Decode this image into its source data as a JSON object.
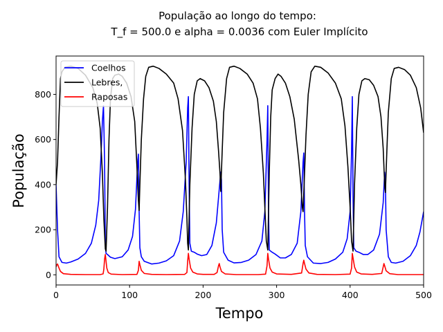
{
  "chart_data": {
    "type": "line",
    "title": "População ao longo do tempo:",
    "subtitle": "T_f = 500.0 e alpha = 0.0036 com Euler Implícito",
    "xlabel": "Tempo",
    "ylabel": "População",
    "xlim": [
      0,
      500
    ],
    "ylim": [
      -45,
      970
    ],
    "xticks": [
      0,
      100,
      200,
      300,
      400,
      500
    ],
    "yticks": [
      0,
      200,
      400,
      600,
      800
    ],
    "grid": false,
    "legend": "top-left",
    "series": [
      {
        "name": "Coelhos",
        "color": "#0000ff",
        "points": [
          [
            0,
            400
          ],
          [
            2,
            200
          ],
          [
            4,
            80
          ],
          [
            8,
            55
          ],
          [
            14,
            52
          ],
          [
            20,
            57
          ],
          [
            30,
            70
          ],
          [
            40,
            95
          ],
          [
            48,
            140
          ],
          [
            54,
            220
          ],
          [
            58,
            330
          ],
          [
            61,
            520
          ],
          [
            63,
            680
          ],
          [
            64.5,
            750
          ],
          [
            66,
            500
          ],
          [
            67,
            140
          ],
          [
            68,
            95
          ],
          [
            70,
            90
          ],
          [
            74,
            78
          ],
          [
            80,
            72
          ],
          [
            90,
            80
          ],
          [
            98,
            110
          ],
          [
            104,
            170
          ],
          [
            108,
            290
          ],
          [
            111,
            500
          ],
          [
            112,
            535
          ],
          [
            113,
            280
          ],
          [
            114,
            120
          ],
          [
            116,
            80
          ],
          [
            120,
            60
          ],
          [
            130,
            48
          ],
          [
            140,
            52
          ],
          [
            150,
            62
          ],
          [
            160,
            85
          ],
          [
            168,
            150
          ],
          [
            173,
            280
          ],
          [
            177,
            500
          ],
          [
            179,
            740
          ],
          [
            180,
            790
          ],
          [
            181,
            400
          ],
          [
            182,
            140
          ],
          [
            184,
            105
          ],
          [
            188,
            100
          ],
          [
            192,
            92
          ],
          [
            198,
            85
          ],
          [
            205,
            90
          ],
          [
            212,
            130
          ],
          [
            218,
            230
          ],
          [
            222,
            380
          ],
          [
            224,
            455
          ],
          [
            225,
            420
          ],
          [
            226,
            200
          ],
          [
            228,
            100
          ],
          [
            234,
            65
          ],
          [
            242,
            53
          ],
          [
            252,
            55
          ],
          [
            262,
            65
          ],
          [
            272,
            90
          ],
          [
            280,
            150
          ],
          [
            284,
            280
          ],
          [
            287,
            600
          ],
          [
            288,
            750
          ],
          [
            289,
            280
          ],
          [
            290,
            110
          ],
          [
            294,
            100
          ],
          [
            298,
            92
          ],
          [
            305,
            75
          ],
          [
            312,
            75
          ],
          [
            320,
            90
          ],
          [
            328,
            140
          ],
          [
            333,
            280
          ],
          [
            336,
            500
          ],
          [
            337,
            540
          ],
          [
            338,
            280
          ],
          [
            339,
            130
          ],
          [
            342,
            80
          ],
          [
            350,
            52
          ],
          [
            360,
            50
          ],
          [
            370,
            55
          ],
          [
            380,
            70
          ],
          [
            390,
            100
          ],
          [
            396,
            160
          ],
          [
            400,
            280
          ],
          [
            402,
            550
          ],
          [
            403,
            790
          ],
          [
            404,
            350
          ],
          [
            405,
            120
          ],
          [
            408,
            105
          ],
          [
            412,
            100
          ],
          [
            418,
            90
          ],
          [
            424,
            90
          ],
          [
            432,
            110
          ],
          [
            440,
            180
          ],
          [
            445,
            320
          ],
          [
            447,
            455
          ],
          [
            448,
            420
          ],
          [
            449,
            200
          ],
          [
            452,
            80
          ],
          [
            456,
            55
          ],
          [
            462,
            52
          ],
          [
            472,
            60
          ],
          [
            482,
            85
          ],
          [
            490,
            130
          ],
          [
            495,
            190
          ],
          [
            500,
            280
          ]
        ]
      },
      {
        "name": "Lebres,",
        "color": "#000000",
        "points": [
          [
            0,
            400
          ],
          [
            2,
            500
          ],
          [
            4,
            700
          ],
          [
            6,
            870
          ],
          [
            8,
            900
          ],
          [
            12,
            920
          ],
          [
            20,
            925
          ],
          [
            30,
            915
          ],
          [
            40,
            885
          ],
          [
            50,
            830
          ],
          [
            56,
            760
          ],
          [
            60,
            650
          ],
          [
            63,
            450
          ],
          [
            65,
            250
          ],
          [
            67,
            115
          ],
          [
            68,
            105
          ],
          [
            70,
            300
          ],
          [
            72,
            600
          ],
          [
            74,
            780
          ],
          [
            77,
            870
          ],
          [
            80,
            885
          ],
          [
            85,
            890
          ],
          [
            90,
            880
          ],
          [
            96,
            850
          ],
          [
            102,
            790
          ],
          [
            107,
            680
          ],
          [
            110,
            480
          ],
          [
            112,
            330
          ],
          [
            113,
            285
          ],
          [
            114,
            400
          ],
          [
            116,
            600
          ],
          [
            119,
            780
          ],
          [
            122,
            880
          ],
          [
            126,
            920
          ],
          [
            132,
            925
          ],
          [
            140,
            915
          ],
          [
            150,
            890
          ],
          [
            160,
            850
          ],
          [
            166,
            780
          ],
          [
            172,
            640
          ],
          [
            176,
            420
          ],
          [
            178,
            250
          ],
          [
            179,
            140
          ],
          [
            180,
            110
          ],
          [
            182,
            400
          ],
          [
            185,
            650
          ],
          [
            188,
            800
          ],
          [
            192,
            860
          ],
          [
            196,
            870
          ],
          [
            202,
            860
          ],
          [
            208,
            830
          ],
          [
            214,
            770
          ],
          [
            218,
            680
          ],
          [
            221,
            550
          ],
          [
            223,
            450
          ],
          [
            224,
            370
          ],
          [
            226,
            550
          ],
          [
            228,
            720
          ],
          [
            232,
            870
          ],
          [
            236,
            920
          ],
          [
            242,
            925
          ],
          [
            250,
            915
          ],
          [
            260,
            890
          ],
          [
            268,
            850
          ],
          [
            274,
            780
          ],
          [
            278,
            650
          ],
          [
            282,
            450
          ],
          [
            284,
            300
          ],
          [
            286,
            150
          ],
          [
            288,
            110
          ],
          [
            290,
            450
          ],
          [
            292,
            700
          ],
          [
            294,
            820
          ],
          [
            298,
            870
          ],
          [
            302,
            890
          ],
          [
            306,
            880
          ],
          [
            312,
            850
          ],
          [
            318,
            790
          ],
          [
            324,
            690
          ],
          [
            330,
            510
          ],
          [
            333,
            400
          ],
          [
            335,
            300
          ],
          [
            336,
            280
          ],
          [
            338,
            450
          ],
          [
            340,
            620
          ],
          [
            343,
            800
          ],
          [
            347,
            900
          ],
          [
            352,
            925
          ],
          [
            360,
            920
          ],
          [
            370,
            895
          ],
          [
            380,
            850
          ],
          [
            388,
            780
          ],
          [
            393,
            660
          ],
          [
            397,
            480
          ],
          [
            400,
            300
          ],
          [
            402,
            150
          ],
          [
            404,
            105
          ],
          [
            406,
            400
          ],
          [
            409,
            650
          ],
          [
            412,
            800
          ],
          [
            416,
            860
          ],
          [
            420,
            870
          ],
          [
            426,
            865
          ],
          [
            432,
            840
          ],
          [
            438,
            790
          ],
          [
            442,
            700
          ],
          [
            445,
            560
          ],
          [
            447,
            400
          ],
          [
            448,
            365
          ],
          [
            450,
            550
          ],
          [
            452,
            720
          ],
          [
            456,
            870
          ],
          [
            460,
            915
          ],
          [
            466,
            920
          ],
          [
            474,
            910
          ],
          [
            482,
            885
          ],
          [
            490,
            830
          ],
          [
            496,
            740
          ],
          [
            500,
            630
          ]
        ]
      },
      {
        "name": "Raposas",
        "color": "#ff0000",
        "points": [
          [
            0,
            35
          ],
          [
            1,
            45
          ],
          [
            2,
            48
          ],
          [
            4,
            30
          ],
          [
            6,
            15
          ],
          [
            10,
            5
          ],
          [
            20,
            2
          ],
          [
            40,
            1
          ],
          [
            60,
            1
          ],
          [
            64,
            4
          ],
          [
            65,
            25
          ],
          [
            66,
            70
          ],
          [
            67,
            90
          ],
          [
            68,
            60
          ],
          [
            69,
            30
          ],
          [
            71,
            10
          ],
          [
            75,
            3
          ],
          [
            90,
            1
          ],
          [
            110,
            2
          ],
          [
            112,
            20
          ],
          [
            113,
            60
          ],
          [
            114,
            45
          ],
          [
            116,
            20
          ],
          [
            120,
            6
          ],
          [
            130,
            2
          ],
          [
            150,
            1
          ],
          [
            175,
            2
          ],
          [
            178,
            10
          ],
          [
            179,
            60
          ],
          [
            180,
            95
          ],
          [
            181,
            70
          ],
          [
            183,
            30
          ],
          [
            186,
            12
          ],
          [
            192,
            4
          ],
          [
            200,
            2
          ],
          [
            215,
            2
          ],
          [
            219,
            10
          ],
          [
            221,
            40
          ],
          [
            222,
            50
          ],
          [
            223,
            35
          ],
          [
            225,
            15
          ],
          [
            230,
            4
          ],
          [
            245,
            1
          ],
          [
            275,
            1
          ],
          [
            285,
            3
          ],
          [
            287,
            40
          ],
          [
            288,
            95
          ],
          [
            289,
            70
          ],
          [
            291,
            30
          ],
          [
            294,
            12
          ],
          [
            300,
            4
          ],
          [
            320,
            2
          ],
          [
            334,
            8
          ],
          [
            336,
            50
          ],
          [
            337,
            65
          ],
          [
            338,
            50
          ],
          [
            340,
            25
          ],
          [
            344,
            8
          ],
          [
            355,
            2
          ],
          [
            380,
            1
          ],
          [
            400,
            3
          ],
          [
            402,
            30
          ],
          [
            403,
            95
          ],
          [
            404,
            75
          ],
          [
            406,
            35
          ],
          [
            409,
            12
          ],
          [
            415,
            4
          ],
          [
            430,
            2
          ],
          [
            443,
            6
          ],
          [
            445,
            35
          ],
          [
            446,
            50
          ],
          [
            447,
            40
          ],
          [
            449,
            18
          ],
          [
            454,
            5
          ],
          [
            465,
            1
          ],
          [
            500,
            1
          ]
        ]
      }
    ]
  }
}
